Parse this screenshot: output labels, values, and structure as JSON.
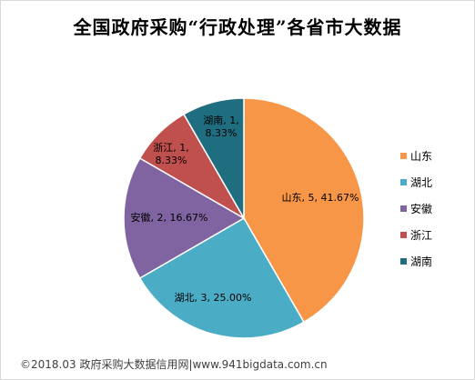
{
  "chart_data": {
    "type": "pie",
    "title": "全国政府采购“行政处理”各省市大数据",
    "categories": [
      "山东",
      "湖北",
      "安徽",
      "浙江",
      "湖南"
    ],
    "values": [
      5,
      3,
      2,
      1,
      1
    ],
    "percent_labels": [
      "41.67%",
      "25.00%",
      "16.67%",
      "8.33%",
      "8.33%"
    ],
    "colors": [
      "#F79646",
      "#4BACC6",
      "#8064A2",
      "#C0504D",
      "#1F6E80"
    ],
    "data_labels": [
      "山东, 5, 41.67%",
      "湖北, 3, 25.00%",
      "安徽, 2, 16.67%",
      "浙江, 1, 8.33%",
      "湖南, 1, 8.33%"
    ],
    "legend_position": "right",
    "legend": [
      "山东",
      "湖北",
      "安徽",
      "浙江",
      "湖南"
    ]
  },
  "footer": "©2018.03 政府采购大数据信用网|www.941bigdata.com.cn"
}
